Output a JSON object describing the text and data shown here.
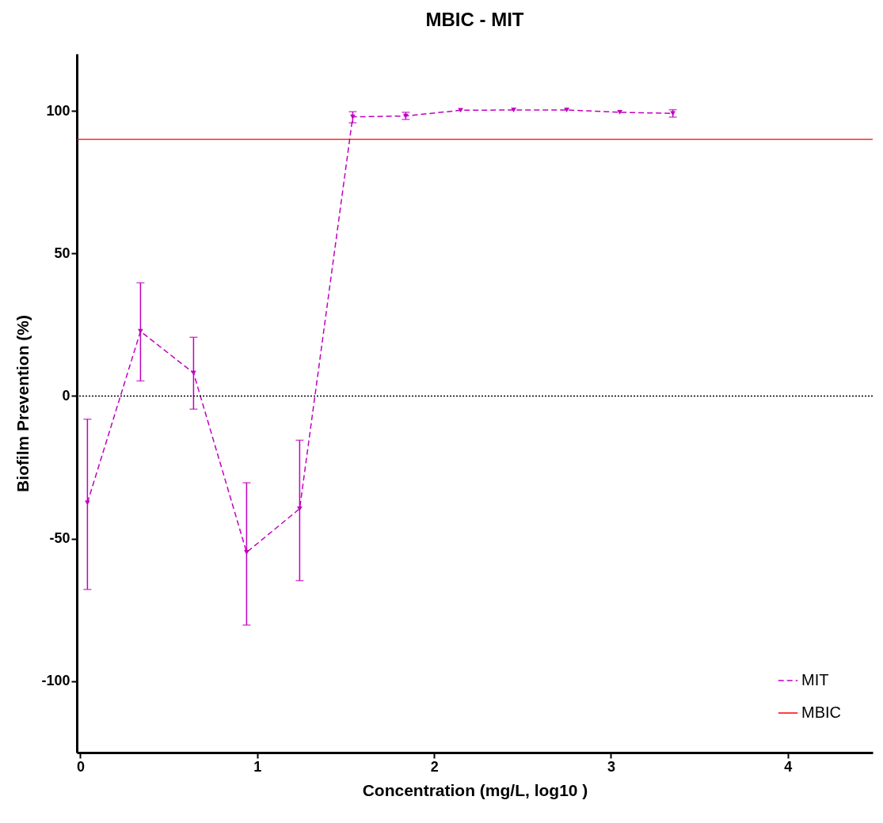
{
  "chart_data": {
    "type": "line",
    "title": "MBIC - MIT",
    "xlabel": "Concentration (mg/L, log10 )",
    "ylabel": "Biofilm Prevention (%)",
    "xlim": [
      -0.02,
      4.48
    ],
    "ylim": [
      -125,
      120
    ],
    "xticks": [
      0,
      1,
      2,
      3,
      4
    ],
    "yticks": [
      -100,
      -50,
      0,
      50,
      100
    ],
    "grid": false,
    "legend": "bottom right",
    "marker": "triangle",
    "line_style": "dashed",
    "series": [
      {
        "name": "MIT",
        "color": "#c000c0",
        "x": [
          0.04,
          0.34,
          0.64,
          0.94,
          1.24,
          1.54,
          1.84,
          2.15,
          2.45,
          2.75,
          3.05,
          3.35
        ],
        "values": [
          -37.4,
          22.7,
          8.1,
          -54.8,
          -39.5,
          97.9,
          98.2,
          100.2,
          100.3,
          100.3,
          99.5,
          99.1
        ],
        "errors": [
          [
            -67.8,
            -8.1
          ],
          [
            5.3,
            39.7
          ],
          [
            -4.6,
            20.6
          ],
          [
            -80.3,
            -30.4
          ],
          [
            -64.7,
            -15.5
          ],
          [
            95.8,
            99.7
          ],
          [
            97,
            99.5
          ],
          null,
          null,
          null,
          null,
          [
            97.8,
            100.4
          ]
        ]
      }
    ],
    "ref_lines": [
      {
        "axis": "y",
        "value": 90,
        "label": "MBIC",
        "color": "#ff0000",
        "line_style": "solid"
      },
      {
        "axis": "y",
        "value": 0,
        "color": "#000000",
        "line_style": "dotted"
      }
    ]
  }
}
